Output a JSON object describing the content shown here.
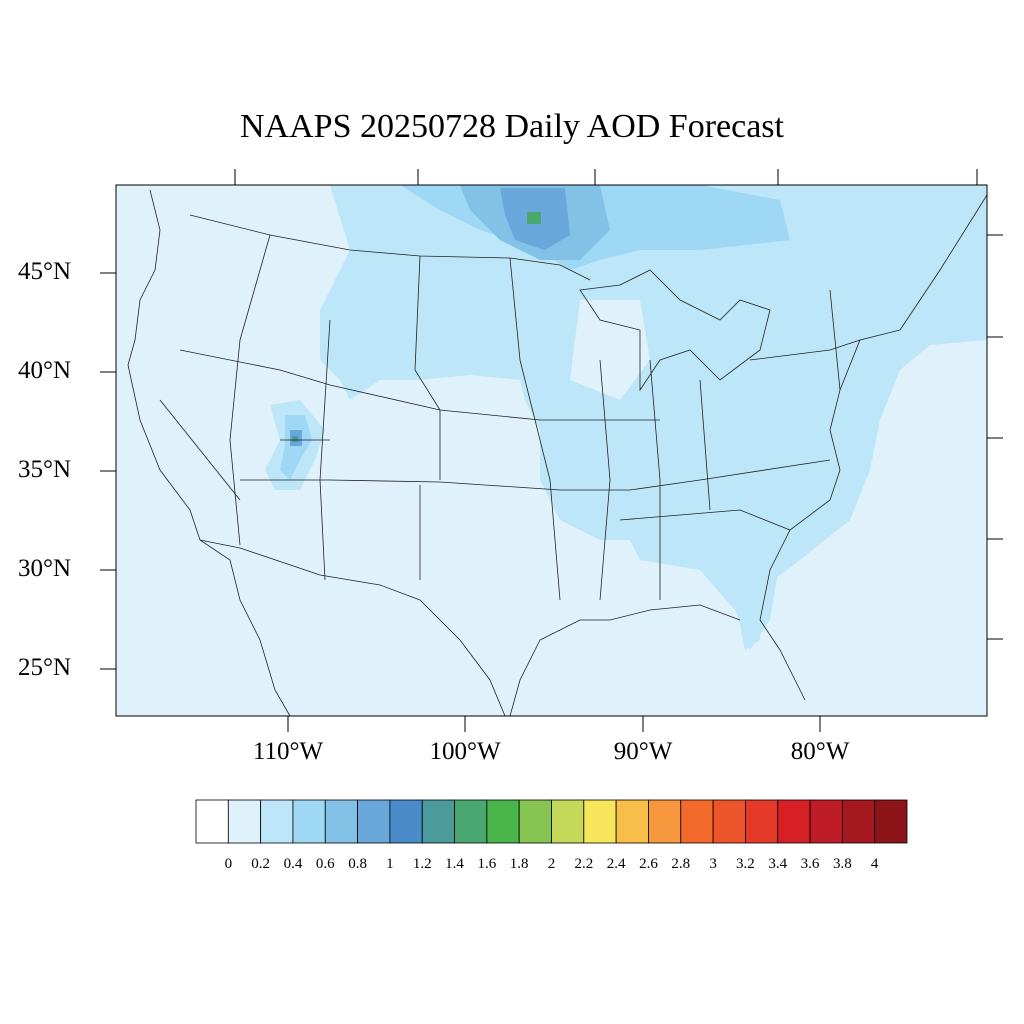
{
  "title": "NAAPS 20250728 Daily AOD Forecast",
  "map": {
    "latitude_labels": [
      "45°N",
      "40°N",
      "35°N",
      "30°N",
      "25°N"
    ],
    "longitude_labels": [
      "110°W",
      "100°W",
      "90°W",
      "80°W"
    ],
    "background_color": "#dff1fb"
  },
  "colorbar": {
    "labels": [
      "0",
      "0.2",
      "0.4",
      "0.6",
      "0.8",
      "1",
      "1.2",
      "1.4",
      "1.6",
      "1.8",
      "2",
      "2.2",
      "2.4",
      "2.6",
      "2.8",
      "3",
      "3.2",
      "3.4",
      "3.6",
      "3.8",
      "4"
    ],
    "colors": [
      "#ffffff",
      "#dff1fb",
      "#bde6f8",
      "#9ed8f4",
      "#84c1e6",
      "#6aa7da",
      "#4a8bc9",
      "#4b9a9c",
      "#49a872",
      "#4ab54a",
      "#86c551",
      "#c4d85a",
      "#f7e65c",
      "#f8be4a",
      "#f7973e",
      "#f46a2d",
      "#ec5429",
      "#e53a27",
      "#d71f26",
      "#be1c26",
      "#a5181f",
      "#8d1419"
    ]
  }
}
